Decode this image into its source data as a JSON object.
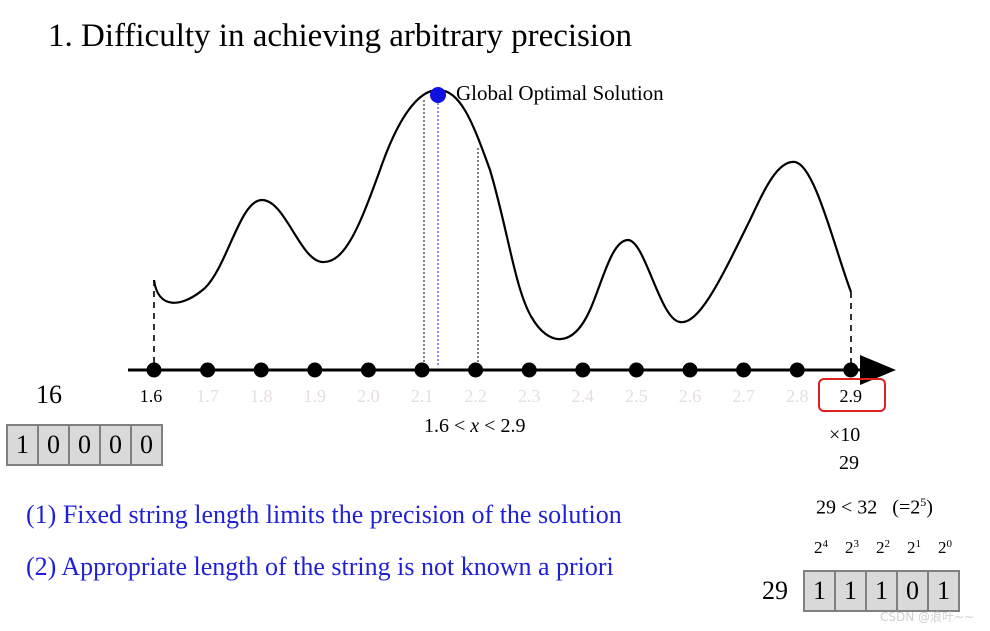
{
  "title": "1. Difficulty in achieving arbitrary precision",
  "global_optimum_label": "Global Optimal Solution",
  "axis_ticks": [
    "1.6",
    "1.7",
    "1.8",
    "1.9",
    "2.0",
    "2.1",
    "2.2",
    "2.3",
    "2.4",
    "2.5",
    "2.6",
    "2.7",
    "2.8",
    "2.9"
  ],
  "faint_ticks": [
    "1.7",
    "1.8",
    "1.9",
    "2.0",
    "2.1",
    "2.2",
    "2.3",
    "2.4",
    "2.5",
    "2.6",
    "2.7",
    "2.8"
  ],
  "range_label": "1.6 < x < 2.9",
  "left_encoding": {
    "value": "16",
    "bits": [
      "1",
      "0",
      "0",
      "0",
      "0"
    ]
  },
  "right_encoding": {
    "times_ten": "×10",
    "scaled_value": "29",
    "comparison": "29 < 32",
    "comparison_note": "(=2",
    "comparison_exp": "5",
    "comparison_close": ")",
    "powers": [
      {
        "base": "2",
        "exp": "4"
      },
      {
        "base": "2",
        "exp": "3"
      },
      {
        "base": "2",
        "exp": "2"
      },
      {
        "base": "2",
        "exp": "1"
      },
      {
        "base": "2",
        "exp": "0"
      }
    ],
    "value": "29",
    "bits": [
      "1",
      "1",
      "1",
      "0",
      "1"
    ]
  },
  "notes": [
    "(1) Fixed string length limits the precision of the solution",
    "(2) Appropriate length of the string is not known a priori"
  ],
  "watermark": "CSDN @浪叶~~",
  "colors": {
    "optimum_dot": "#1010e0",
    "note_text": "#1f1fd6",
    "highlight_box": "#e02020",
    "faint_tick": "#e7dde4",
    "cell_fill": "#d9d9d9"
  }
}
